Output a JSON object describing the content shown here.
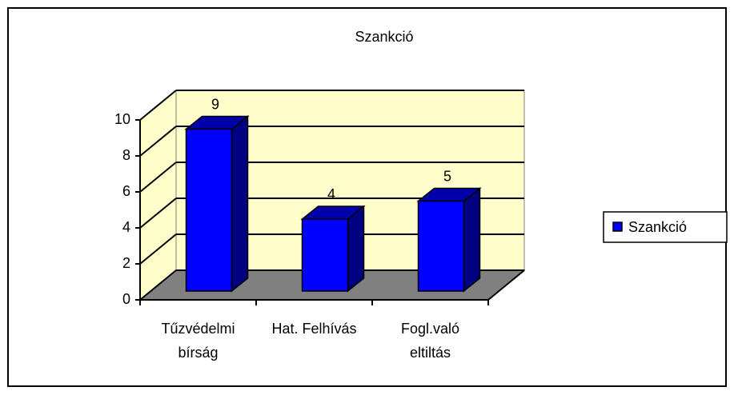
{
  "chart_data": {
    "type": "bar3d",
    "title": "Szankció",
    "categories": [
      "Tűzvédelmi bírság",
      "Hat. Felhívás",
      "Fogl.való eltiltás"
    ],
    "series": [
      {
        "name": "Szankció",
        "color": "#0000ff",
        "values": [
          9,
          4,
          5
        ]
      }
    ],
    "ylim": [
      0,
      10
    ],
    "yticks": [
      0,
      2,
      4,
      6,
      8,
      10
    ],
    "grid": true,
    "legend": "right"
  }
}
